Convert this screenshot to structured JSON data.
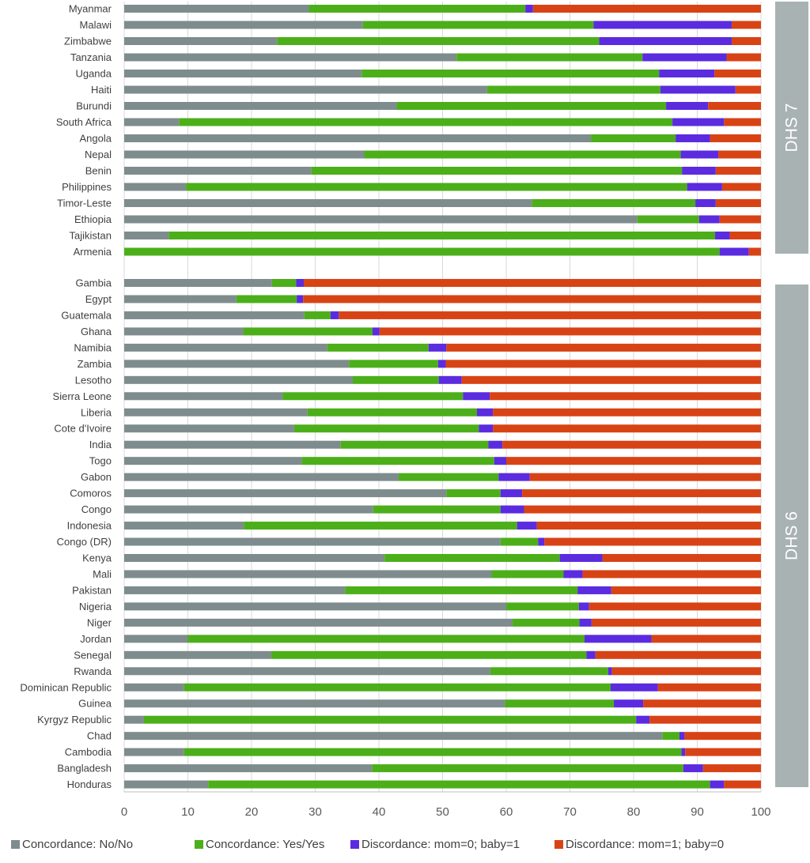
{
  "chart_data": {
    "type": "bar",
    "orientation": "horizontal",
    "stacked": true,
    "xlim": [
      0,
      100
    ],
    "xticks": [
      "0",
      "10",
      "20",
      "30",
      "40",
      "50",
      "60",
      "70",
      "80",
      "90",
      "100"
    ],
    "grid": true,
    "legend_position": "bottom",
    "series": [
      {
        "name": "Concordance: No/No",
        "color": "#7f8c8d"
      },
      {
        "name": "Concordance: Yes/Yes",
        "color": "#4caf1a"
      },
      {
        "name": "Discordance: mom=0; baby=1",
        "color": "#5b2be0"
      },
      {
        "name": "Discordance: mom=1; baby=0",
        "color": "#d84315"
      }
    ],
    "groups": [
      {
        "label": "DHS 7",
        "rows": [
          {
            "category": "Myanmar",
            "values": [
              29,
              34,
              1.2,
              35.8
            ]
          },
          {
            "category": "Malawi",
            "values": [
              37.5,
              36.2,
              21.7,
              4.6
            ]
          },
          {
            "category": "Zimbabwe",
            "values": [
              24,
              50.6,
              20.8,
              4.6
            ]
          },
          {
            "category": "Tanzania",
            "values": [
              52.2,
              29.2,
              13.2,
              5.4
            ]
          },
          {
            "category": "Uganda",
            "values": [
              37.3,
              46.7,
              8.7,
              7.3
            ]
          },
          {
            "category": "Haiti",
            "values": [
              57,
              27.2,
              11.8,
              4
            ]
          },
          {
            "category": "Burundi",
            "values": [
              42.8,
              42.3,
              6.6,
              8.3
            ]
          },
          {
            "category": "South Africa",
            "values": [
              8.6,
              77.5,
              8.1,
              5.8
            ]
          },
          {
            "category": "Angola",
            "values": [
              73.3,
              13.3,
              5.4,
              8
            ]
          },
          {
            "category": "Nepal",
            "values": [
              37.7,
              49.7,
              5.9,
              6.7
            ]
          },
          {
            "category": "Benin",
            "values": [
              29.4,
              58.2,
              5.3,
              7.1
            ]
          },
          {
            "category": "Philippines",
            "values": [
              9.7,
              78.7,
              5.5,
              6.1
            ]
          },
          {
            "category": "Timor-Leste",
            "values": [
              64,
              25.7,
              3.2,
              7.1
            ]
          },
          {
            "category": "Ethiopia",
            "values": [
              80.6,
              9.7,
              3.2,
              6.5
            ]
          },
          {
            "category": "Tajikistan",
            "values": [
              7,
              85.8,
              2.3,
              4.9
            ]
          },
          {
            "category": "Armenia",
            "values": [
              0,
              93.5,
              4.6,
              1.9
            ]
          }
        ]
      },
      {
        "label": "DHS 6",
        "rows": [
          {
            "category": "Gambia",
            "values": [
              23.2,
              3.8,
              1.2,
              71.8
            ]
          },
          {
            "category": "Egypt",
            "values": [
              17.6,
              9.5,
              1,
              71.9
            ]
          },
          {
            "category": "Guatemala",
            "values": [
              28.3,
              4.1,
              1.3,
              66.3
            ]
          },
          {
            "category": "Ghana",
            "values": [
              18.7,
              20.3,
              1.1,
              59.9
            ]
          },
          {
            "category": "Namibia",
            "values": [
              31.9,
              15.9,
              2.8,
              49.4
            ]
          },
          {
            "category": "Zambia",
            "values": [
              35.3,
              14,
              1.2,
              49.5
            ]
          },
          {
            "category": "Lesotho",
            "values": [
              35.9,
              13.5,
              3.6,
              47
            ]
          },
          {
            "category": "Sierra Leone",
            "values": [
              24.9,
              28.3,
              4.2,
              42.6
            ]
          },
          {
            "category": "Liberia",
            "values": [
              28.8,
              26.6,
              2.5,
              42.1
            ]
          },
          {
            "category": "Cote d'Ivoire",
            "values": [
              26.7,
              29,
              2.2,
              42.1
            ]
          },
          {
            "category": "India",
            "values": [
              34,
              23.2,
              2.2,
              40.6
            ]
          },
          {
            "category": "Togo",
            "values": [
              27.9,
              30.2,
              1.9,
              40
            ]
          },
          {
            "category": "Gabon",
            "values": [
              43.1,
              15.7,
              4.9,
              36.3
            ]
          },
          {
            "category": "Comoros",
            "values": [
              50.6,
              8.5,
              3.4,
              37.5
            ]
          },
          {
            "category": "Congo",
            "values": [
              39.1,
              20,
              3.7,
              37.2
            ]
          },
          {
            "category": "Indonesia",
            "values": [
              18.8,
              42.9,
              3.1,
              35.2
            ]
          },
          {
            "category": "Congo (DR)",
            "values": [
              59.1,
              5.9,
              1,
              34
            ]
          },
          {
            "category": "Kenya",
            "values": [
              40.9,
              27.5,
              6.7,
              24.9
            ]
          },
          {
            "category": "Mali",
            "values": [
              57.7,
              11.3,
              3,
              28
            ]
          },
          {
            "category": "Pakistan",
            "values": [
              34.7,
              36.5,
              5.3,
              23.5
            ]
          },
          {
            "category": "Nigeria",
            "values": [
              60,
              11.4,
              1.6,
              27
            ]
          },
          {
            "category": "Niger",
            "values": [
              61,
              10.5,
              1.9,
              26.6
            ]
          },
          {
            "category": "Jordan",
            "values": [
              10,
              62.3,
              10.5,
              17.2
            ]
          },
          {
            "category": "Senegal",
            "values": [
              23.1,
              49.5,
              1.4,
              26
            ]
          },
          {
            "category": "Rwanda",
            "values": [
              57.5,
              18.5,
              0.6,
              23.4
            ]
          },
          {
            "category": "Dominican Republic",
            "values": [
              9.4,
              67,
              7.4,
              16.2
            ]
          },
          {
            "category": "Guinea",
            "values": [
              59.8,
              17.1,
              4.6,
              18.5
            ]
          },
          {
            "category": "Kyrgyz Republic",
            "values": [
              3.1,
              77.3,
              2.1,
              17.5
            ]
          },
          {
            "category": "Chad",
            "values": [
              84.5,
              2.7,
              0.8,
              12
            ]
          },
          {
            "category": "Cambodia",
            "values": [
              9.4,
              78.1,
              0.6,
              11.9
            ]
          },
          {
            "category": "Bangladesh",
            "values": [
              38.9,
              48.9,
              3.1,
              9.1
            ]
          },
          {
            "category": "Honduras",
            "values": [
              13.2,
              78.8,
              2.2,
              5.8
            ]
          }
        ]
      }
    ]
  }
}
